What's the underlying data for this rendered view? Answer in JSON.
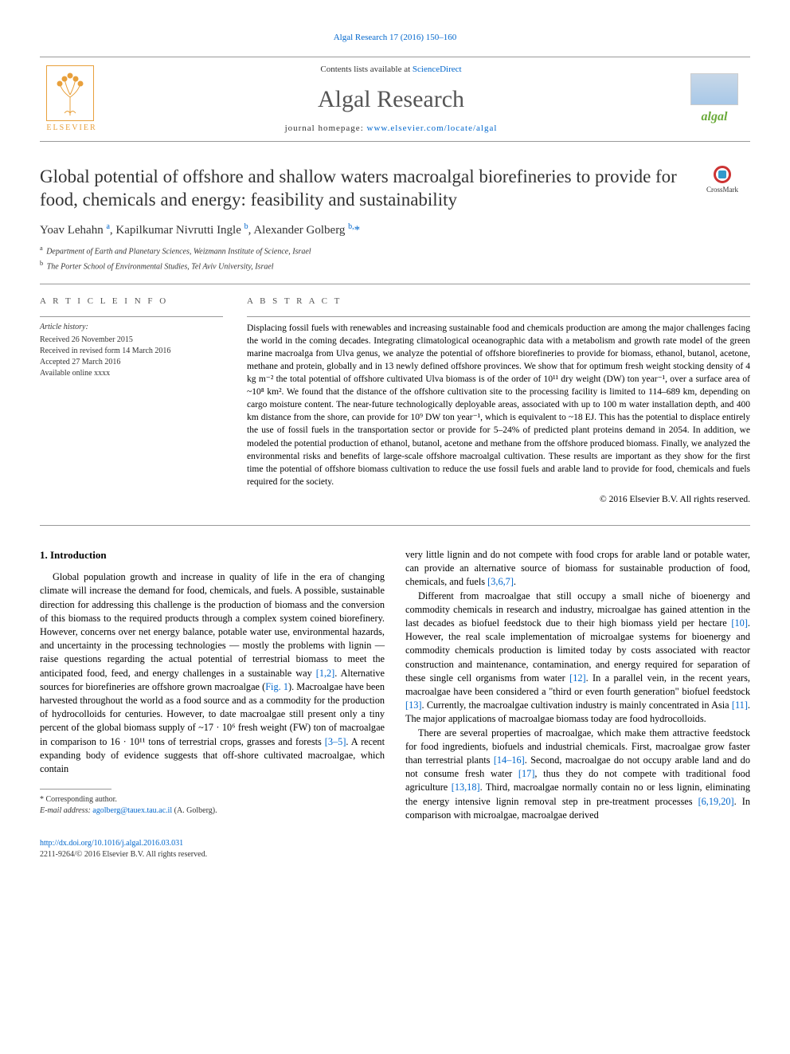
{
  "top_header": "Algal Research 17 (2016) 150–160",
  "banner": {
    "contents_prefix": "Contents lists available at ",
    "contents_link": "ScienceDirect",
    "journal_name": "Algal Research",
    "homepage_prefix": "journal homepage: ",
    "homepage_link": "www.elsevier.com/locate/algal",
    "elsevier_label": "ELSEVIER",
    "algal_logo_text": "algal"
  },
  "crossmark_label": "CrossMark",
  "title": "Global potential of offshore and shallow waters macroalgal biorefineries to provide for food, chemicals and energy: feasibility and sustainability",
  "authors_html": "Yoav Lehahn <sup>a</sup>, Kapilkumar Nivrutti Ingle <sup>b</sup>, Alexander Golberg <sup>b,</sup>",
  "affiliations": [
    {
      "sup": "a",
      "text": "Department of Earth and Planetary Sciences, Weizmann Institute of Science, Israel"
    },
    {
      "sup": "b",
      "text": "The Porter School of Environmental Studies, Tel Aviv University, Israel"
    }
  ],
  "article_info_heading": "A R T I C L E   I N F O",
  "history_label": "Article history:",
  "history": [
    "Received 26 November 2015",
    "Received in revised form 14 March 2016",
    "Accepted 27 March 2016",
    "Available online xxxx"
  ],
  "abstract_heading": "A B S T R A C T",
  "abstract_body": "Displacing fossil fuels with renewables and increasing sustainable food and chemicals production are among the major challenges facing the world in the coming decades. Integrating climatological oceanographic data with a metabolism and growth rate model of the green marine macroalga from Ulva genus, we analyze the potential of offshore biorefineries to provide for biomass, ethanol, butanol, acetone, methane and protein, globally and in 13 newly defined offshore provinces. We show that for optimum fresh weight stocking density of 4 kg m⁻² the total potential of offshore cultivated Ulva biomass is of the order of 10¹¹ dry weight (DW) ton year⁻¹, over a surface area of ~10⁸ km². We found that the distance of the offshore cultivation site to the processing facility is limited to 114–689 km, depending on cargo moisture content. The near-future technologically deployable areas, associated with up to 100 m water installation depth, and 400 km distance from the shore, can provide for 10⁹ DW ton year⁻¹, which is equivalent to ~18 EJ. This has the potential to displace entirely the use of fossil fuels in the transportation sector or provide for 5–24% of predicted plant proteins demand in 2054. In addition, we modeled the potential production of ethanol, butanol, acetone and methane from the offshore produced biomass. Finally, we analyzed the environmental risks and benefits of large-scale offshore macroalgal cultivation. These results are important as they show for the first time the potential of offshore biomass cultivation to reduce the use fossil fuels and arable land to provide for food, chemicals and fuels required for the society.",
  "abstract_copyright": "© 2016 Elsevier B.V. All rights reserved.",
  "intro_heading": "1. Introduction",
  "col1_p1a": "Global population growth and increase in quality of life in the era of changing climate will increase the demand for food, chemicals, and fuels. A possible, sustainable direction for addressing this challenge is the production of biomass and the conversion of this biomass to the required products through a complex system coined biorefinery. However, concerns over net energy balance, potable water use, environmental hazards, and uncertainty in the processing technologies — mostly the problems with lignin — raise questions regarding the actual potential of terrestrial biomass to meet the anticipated food, feed, and energy challenges in a sustainable way ",
  "col1_link1": "[1,2]",
  "col1_p1b": ". Alternative sources for biorefineries are offshore grown macroalgae (",
  "col1_link_fig": "Fig. 1",
  "col1_p1c": "). Macroalgae have been harvested throughout the world as a food source and as a commodity for the production of hydrocolloids for centuries. However, to date macroalgae still present only a tiny percent of the global biomass supply of ~17 · 10⁶ fresh weight (FW) ton of macroalgae in comparison to 16 · 10¹¹ tons of terrestrial crops, grasses and forests ",
  "col1_link2": "[3–5]",
  "col1_p1d": ". A recent expanding body of evidence suggests that off-shore cultivated macroalgae, which contain",
  "col2_p1a": "very little lignin and do not compete with food crops for arable land or potable water, can provide an alternative source of biomass for sustainable production of food, chemicals, and fuels ",
  "col2_link1": "[3,6,7]",
  "col2_p1b": ".",
  "col2_p2a": "Different from macroalgae that still occupy a small niche of bioenergy and commodity chemicals in research and industry, microalgae has gained attention in the last decades as biofuel feedstock due to their high biomass yield per hectare ",
  "col2_link2": "[10]",
  "col2_p2b": ". However, the real scale implementation of microalgae systems for bioenergy and commodity chemicals production is limited today by costs associated with reactor construction and maintenance, contamination, and energy required for separation of these single cell organisms from water ",
  "col2_link3": "[12]",
  "col2_p2c": ". In a parallel vein, in the recent years, macroalgae have been considered a \"third or even fourth generation\" biofuel feedstock ",
  "col2_link4": "[13]",
  "col2_p2d": ". Currently, the macroalgae cultivation industry is mainly concentrated in Asia ",
  "col2_link5": "[11]",
  "col2_p2e": ". The major applications of macroalgae biomass today are food hydrocolloids.",
  "col2_p3a": "There are several properties of macroalgae, which make them attractive feedstock for food ingredients, biofuels and industrial chemicals. First, macroalgae grow faster than terrestrial plants ",
  "col2_link6": "[14–16]",
  "col2_p3b": ". Second, macroalgae do not occupy arable land and do not consume fresh water ",
  "col2_link7": "[17]",
  "col2_p3c": ", thus they do not compete with traditional food agriculture ",
  "col2_link8": "[13,18]",
  "col2_p3d": ". Third, macroalgae normally contain no or less lignin, eliminating the energy intensive lignin removal step in pre-treatment processes ",
  "col2_link9": "[6,19,20]",
  "col2_p3e": ". In comparison with microalgae, macroalgae derived",
  "footnote_star": "* Corresponding author.",
  "footnote_email_label": "E-mail address: ",
  "footnote_email": "agolberg@tauex.tau.ac.il",
  "footnote_email_name": " (A. Golberg).",
  "doi": "http://dx.doi.org/10.1016/j.algal.2016.03.031",
  "issn_line": "2211-9264/© 2016 Elsevier B.V. All rights reserved.",
  "colors": {
    "link": "#0066cc",
    "elsevier_orange": "#e8a03c",
    "algal_green": "#6aaa3a"
  }
}
